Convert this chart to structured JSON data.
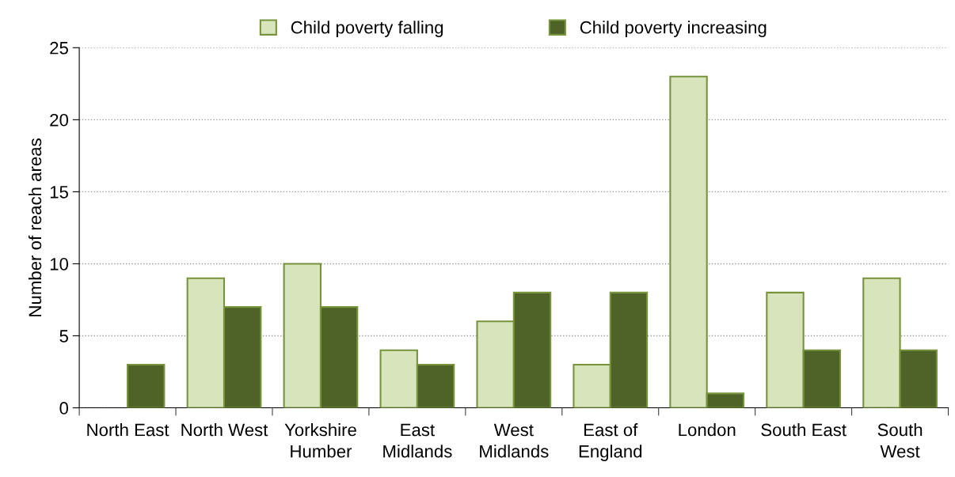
{
  "chart_data": {
    "type": "bar",
    "ylabel": "Number of reach areas",
    "categories": [
      "North East",
      "North West",
      "Yorkshire\nHumber",
      "East\nMidlands",
      "West\nMidlands",
      "East of\nEngland",
      "London",
      "South East",
      "South\nWest"
    ],
    "series": [
      {
        "name": "Child poverty falling",
        "color": "#d8e4bc",
        "values": [
          null,
          9,
          10,
          4,
          6,
          3,
          23,
          8,
          9
        ]
      },
      {
        "name": "Child poverty increasing",
        "color": "#4f6228",
        "values": [
          3,
          7,
          7,
          3,
          8,
          8,
          1,
          4,
          4
        ]
      }
    ],
    "ylim": [
      0,
      25
    ],
    "yticks": [
      0,
      5,
      10,
      15,
      20,
      25
    ],
    "grid": "y",
    "legend": "top"
  }
}
